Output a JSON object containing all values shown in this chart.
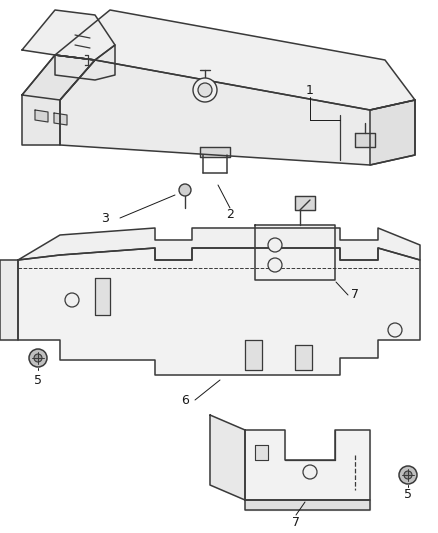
{
  "bg_color": "#ffffff",
  "line_color": "#3a3a3a",
  "label_color": "#1a1a1a",
  "figsize": [
    4.38,
    5.33
  ],
  "dpi": 100
}
